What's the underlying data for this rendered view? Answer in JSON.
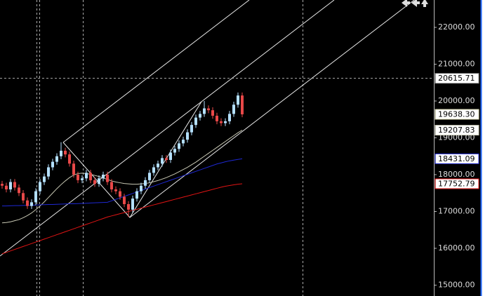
{
  "chart_data": {
    "type": "candlestick",
    "ylim": [
      14705,
      22743
    ],
    "yticks": [
      {
        "value": 15000,
        "label": "15000.00"
      },
      {
        "value": 16000,
        "label": "16000.00"
      },
      {
        "value": 17000,
        "label": "17000.00"
      },
      {
        "value": 18000,
        "label": "18000.00"
      },
      {
        "value": 19000,
        "label": "19000.00"
      },
      {
        "value": 20000,
        "label": "20000.00"
      },
      {
        "value": 21000,
        "label": "21000.00"
      },
      {
        "value": 22000,
        "label": "22000.00"
      }
    ],
    "up_color": "#b4e0ff",
    "down_color": "#e84848",
    "open": [
      17750,
      17700,
      17600,
      17800,
      17650,
      17500,
      17300,
      17150,
      17250,
      17550,
      17800,
      17950,
      18200,
      18350,
      18500,
      18650,
      18550,
      18300,
      18000,
      17850,
      17900,
      18050,
      17850,
      17750,
      17900,
      18000,
      17800,
      17600,
      17550,
      17400,
      17200,
      17050,
      17350,
      17550,
      17700,
      17850,
      18050,
      18200,
      18300,
      18450,
      18400,
      18600,
      18700,
      18850,
      18950,
      19150,
      19350,
      19550,
      19650,
      19800,
      19750,
      19600,
      19450,
      19400,
      19450,
      19650,
      19900,
      20150
    ],
    "high": [
      17830,
      17780,
      17880,
      17880,
      17730,
      17580,
      17380,
      17330,
      17630,
      17880,
      18030,
      18280,
      18430,
      18580,
      18880,
      18730,
      18630,
      18380,
      18080,
      17980,
      18130,
      18130,
      17930,
      17980,
      18080,
      18080,
      17880,
      17680,
      17630,
      17480,
      17280,
      17430,
      17630,
      17780,
      17930,
      18130,
      18280,
      18380,
      18530,
      18530,
      18680,
      18780,
      18930,
      19030,
      19230,
      19430,
      19630,
      19730,
      20000,
      19880,
      19830,
      19680,
      19530,
      19530,
      19730,
      19980,
      20230,
      20230
    ],
    "low": [
      17620,
      17520,
      17520,
      17570,
      17420,
      17220,
      17070,
      17070,
      17170,
      17470,
      17720,
      17870,
      18120,
      18270,
      18420,
      18470,
      18220,
      17920,
      17770,
      17770,
      17820,
      17770,
      17670,
      17670,
      17820,
      17720,
      17520,
      17470,
      17320,
      17120,
      16850,
      16970,
      17270,
      17470,
      17620,
      17770,
      17970,
      18120,
      18220,
      18320,
      18320,
      18520,
      18620,
      18770,
      18870,
      19070,
      19270,
      19470,
      19570,
      19670,
      19520,
      19370,
      19320,
      19320,
      19370,
      19570,
      19820,
      19560
    ],
    "close": [
      17700,
      17600,
      17800,
      17650,
      17500,
      17300,
      17150,
      17250,
      17550,
      17800,
      17950,
      18200,
      18350,
      18500,
      18650,
      18550,
      18300,
      18000,
      17850,
      17900,
      18050,
      17850,
      17750,
      17900,
      18000,
      17800,
      17600,
      17550,
      17400,
      17200,
      17050,
      17350,
      17550,
      17700,
      17850,
      18050,
      18200,
      18300,
      18450,
      18400,
      18600,
      18700,
      18850,
      18950,
      19150,
      19350,
      19550,
      19650,
      19800,
      19750,
      19600,
      19450,
      19400,
      19450,
      19650,
      19900,
      20150,
      19638.3
    ],
    "last_label": "19638.30",
    "series": [
      {
        "color": "#c8c8b4",
        "last_label": "19207.83",
        "values": [
          16690,
          16700,
          16720,
          16750,
          16780,
          16830,
          16890,
          16960,
          17050,
          17150,
          17260,
          17380,
          17500,
          17620,
          17730,
          17830,
          17920,
          17990,
          18030,
          18040,
          18030,
          18010,
          17980,
          17950,
          17910,
          17870,
          17830,
          17800,
          17780,
          17760,
          17750,
          17740,
          17740,
          17750,
          17760,
          17780,
          17810,
          17840,
          17880,
          17920,
          17970,
          18020,
          18080,
          18140,
          18200,
          18270,
          18340,
          18420,
          18500,
          18580,
          18660,
          18740,
          18820,
          18900,
          18980,
          19060,
          19140,
          19207.83
        ]
      },
      {
        "color": "#1e28d2",
        "last_label": "18431.09",
        "values": [
          17150,
          17150,
          17155,
          17160,
          17160,
          17165,
          17170,
          17170,
          17175,
          17180,
          17185,
          17190,
          17190,
          17195,
          17200,
          17205,
          17210,
          17210,
          17215,
          17220,
          17225,
          17230,
          17235,
          17240,
          17245,
          17250,
          17290,
          17330,
          17370,
          17410,
          17450,
          17490,
          17530,
          17570,
          17610,
          17650,
          17690,
          17730,
          17770,
          17810,
          17850,
          17890,
          17930,
          17970,
          18010,
          18050,
          18090,
          18130,
          18170,
          18210,
          18250,
          18290,
          18320,
          18350,
          18375,
          18395,
          18415,
          18431.09
        ]
      },
      {
        "color": "#e01414",
        "last_label": "17752.79",
        "values": [
          15850,
          15890,
          15930,
          15970,
          16010,
          16050,
          16090,
          16130,
          16170,
          16210,
          16250,
          16290,
          16330,
          16370,
          16410,
          16450,
          16490,
          16530,
          16570,
          16610,
          16650,
          16690,
          16730,
          16770,
          16810,
          16850,
          16880,
          16910,
          16940,
          16970,
          17000,
          17030,
          17060,
          17090,
          17120,
          17150,
          17180,
          17210,
          17240,
          17270,
          17300,
          17330,
          17360,
          17390,
          17420,
          17450,
          17480,
          17510,
          17540,
          17570,
          17600,
          17630,
          17660,
          17685,
          17705,
          17725,
          17740,
          17752.79
        ]
      }
    ],
    "crosshair": {
      "value": 20615.71,
      "label": "20615.71"
    }
  }
}
